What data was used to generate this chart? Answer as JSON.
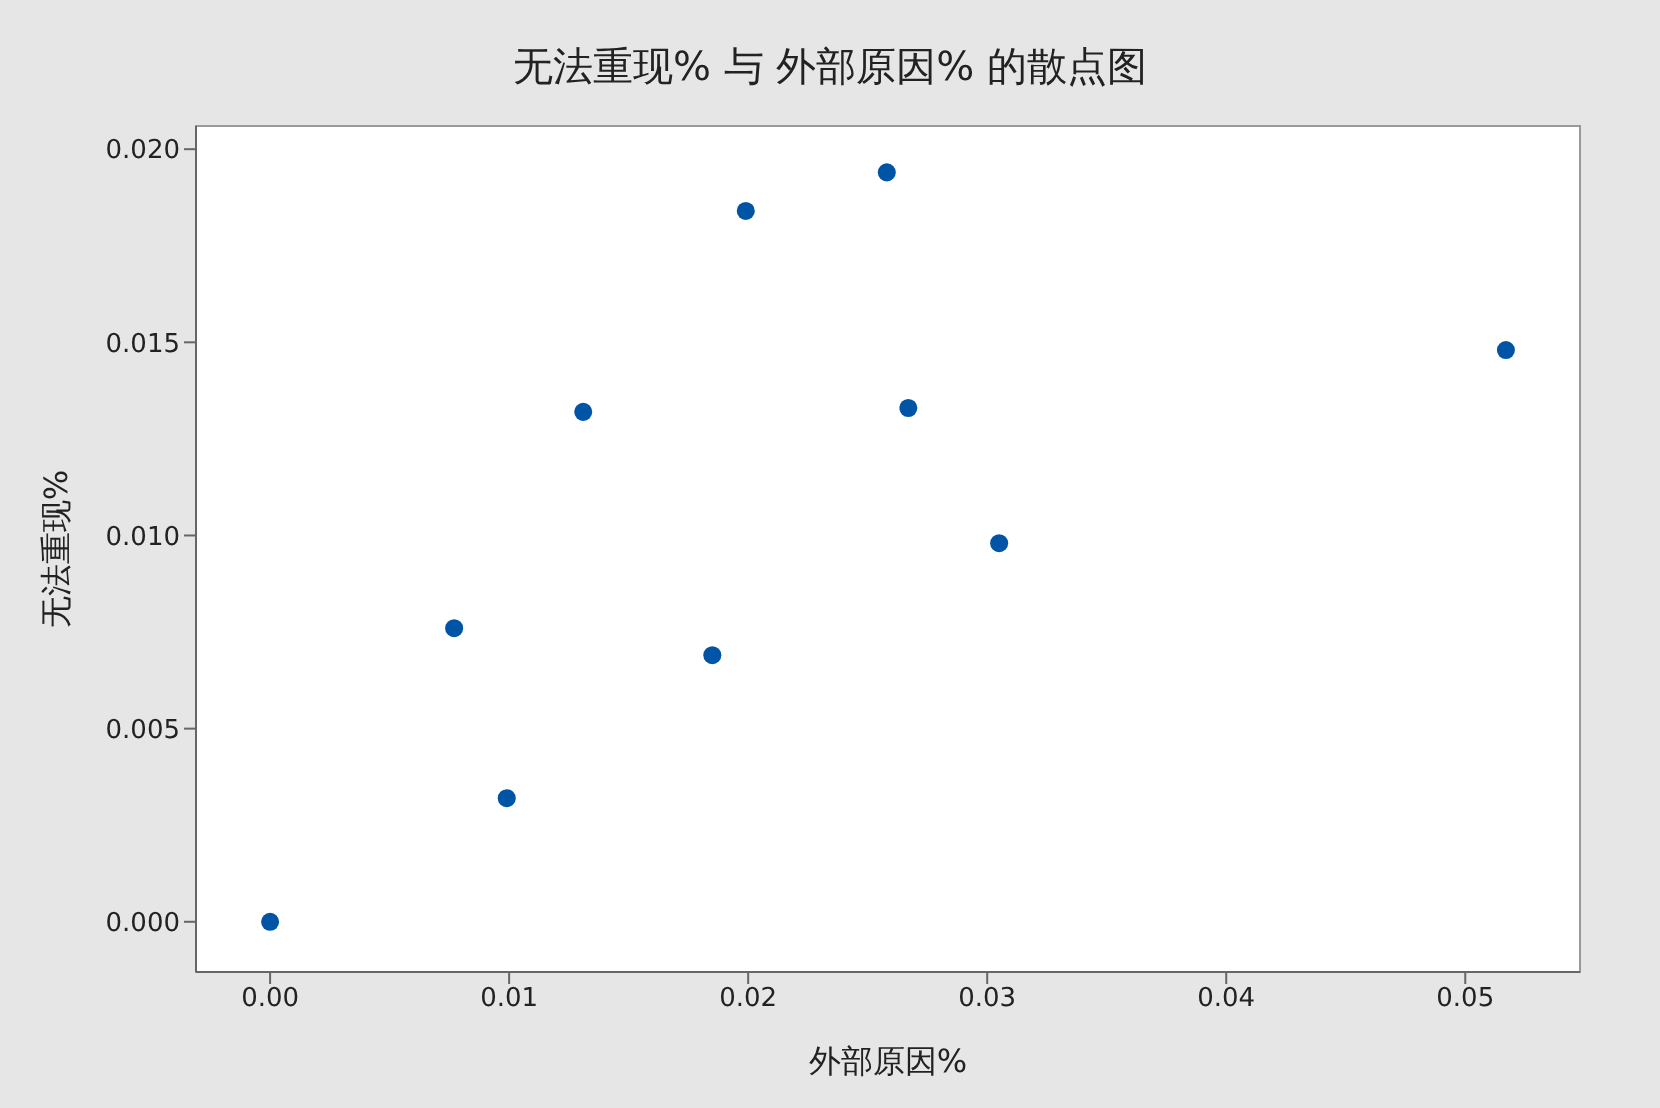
{
  "chart_data": {
    "type": "scatter",
    "title": "无法重现% 与 外部原因% 的散点图",
    "xlabel": "外部原因%",
    "ylabel": "无法重现%",
    "x": [
      0,
      0.0077,
      0.0099,
      0.0131,
      0.0185,
      0.0199,
      0.0258,
      0.0267,
      0.0305,
      0.0517
    ],
    "series": [
      {
        "color": "#0054a6",
        "values": [
          0,
          0.0076,
          0.0032,
          0.0132,
          0.0069,
          0.0184,
          0.0194,
          0.0133,
          0.0098,
          0.0148
        ]
      }
    ],
    "xlim": [
      -0.0031,
      0.0548
    ],
    "xticks": [
      {
        "value": 0,
        "label": "0.00"
      },
      {
        "value": 0.01,
        "label": "0.01"
      },
      {
        "value": 0.02,
        "label": "0.02"
      },
      {
        "value": 0.03,
        "label": "0.03"
      },
      {
        "value": 0.04,
        "label": "0.04"
      },
      {
        "value": 0.05,
        "label": "0.05"
      }
    ],
    "ylim": [
      -0.0013,
      0.0206
    ],
    "yticks": [
      {
        "value": 0,
        "label": "0.000"
      },
      {
        "value": 0.005,
        "label": "0.005"
      },
      {
        "value": 0.01,
        "label": "0.010"
      },
      {
        "value": 0.015,
        "label": "0.015"
      },
      {
        "value": 0.02,
        "label": "0.020"
      }
    ],
    "marker": "circle",
    "legend": false
  }
}
